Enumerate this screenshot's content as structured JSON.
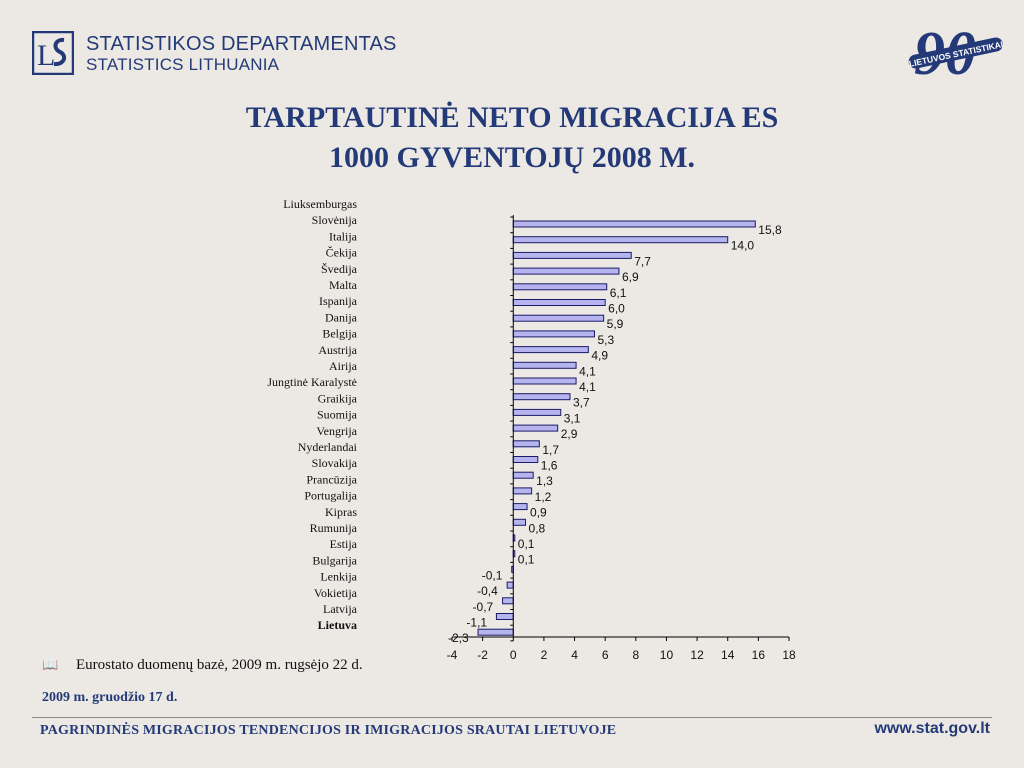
{
  "header": {
    "org_line1": "STATISTIKOS DEPARTAMENTAS",
    "org_line2": "STATISTICS LITHUANIA",
    "badge_number": "90",
    "badge_text": "LIETUVOS STATISTIKAI"
  },
  "title": {
    "line1": "TARPTAUTINĖ NETO MIGRACIJA ES",
    "line2": "1000 GYVENTOJŲ 2008 M."
  },
  "chart_data": {
    "type": "bar",
    "orientation": "horizontal",
    "categories": [
      "Liuksemburgas",
      "Slovėnija",
      "Italija",
      "Čekija",
      "Švedija",
      "Malta",
      "Ispanija",
      "Danija",
      "Belgija",
      "Austrija",
      "Airija",
      "Jungtinė Karalystė",
      "Graikija",
      "Suomija",
      "Vengrija",
      "Nyderlandai",
      "Slovakija",
      "Prancūzija",
      "Portugalija",
      "Kipras",
      "Rumunija",
      "Estija",
      "Bulgarija",
      "Lenkija",
      "Vokietija",
      "Latvija",
      "Lietuva"
    ],
    "bar_values": [
      15.8,
      14.0,
      7.7,
      6.9,
      6.1,
      6.0,
      5.9,
      5.3,
      4.9,
      4.1,
      4.1,
      3.7,
      3.1,
      2.9,
      1.7,
      1.6,
      1.3,
      1.2,
      0.9,
      0.8,
      0.1,
      0.1,
      -0.1,
      -0.4,
      -0.7,
      -1.1,
      -2.3
    ],
    "value_labels": [
      "15,8",
      "14,0",
      "7,7",
      "6,9",
      "6,1",
      "6,0",
      "5,9",
      "5,3",
      "4,9",
      "4,1",
      "4,1",
      "3,7",
      "3,1",
      "2,9",
      "1,7",
      "1,6",
      "1,3",
      "1,2",
      "0,9",
      "0,8",
      "0,1",
      "0,1",
      "-0,1",
      "-0,4",
      "-0,7",
      "-1,1",
      "-2,3"
    ],
    "highlight_category": "Lietuva",
    "x_ticks": [
      -4,
      -2,
      0,
      2,
      4,
      6,
      8,
      10,
      12,
      14,
      16,
      18
    ],
    "xlim": [
      -4,
      18
    ],
    "grid": false,
    "legend": "none",
    "bar_color": "#b6b4ef"
  },
  "footer": {
    "source_icon": "📖",
    "source": "Eurostato duomenų bazė, 2009 m. rugsėjo 22 d.",
    "date": "2009 m. gruodžio 17 d.",
    "title": "PAGRINDINĖS MIGRACIJOS TENDENCIJOS IR IMIGRACIJOS SRAUTAI LIETUVOJE",
    "url": "www.stat.gov.lt"
  },
  "colors": {
    "brand": "#243a78",
    "background": "#ece9e4"
  }
}
